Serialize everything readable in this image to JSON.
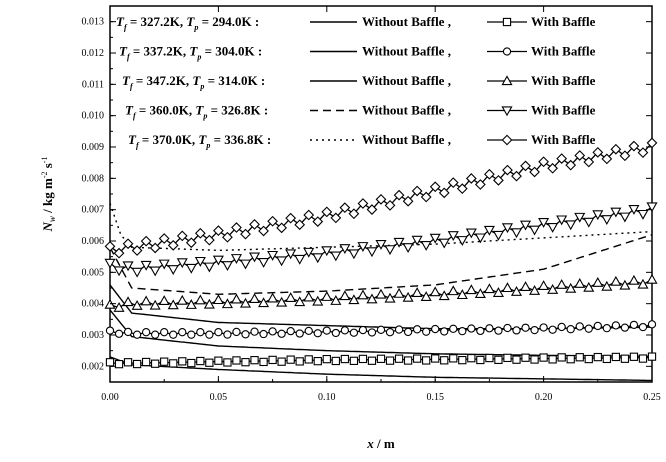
{
  "chart_data": {
    "type": "line",
    "title": "",
    "xlabel": "x / m",
    "ylabel": "N_w / kg m^-2 s^-1",
    "xlim": [
      0.0,
      0.25
    ],
    "ylim": [
      0.0015,
      0.0135
    ],
    "x_ticks": [
      0.0,
      0.05,
      0.1,
      0.15,
      0.2,
      0.25
    ],
    "x_tick_labels": [
      "0.00",
      "0.05",
      "0.10",
      "0.15",
      "0.20",
      "0.25"
    ],
    "y_ticks": [
      0.002,
      0.003,
      0.004,
      0.005,
      0.006,
      0.007,
      0.008,
      0.009,
      0.01,
      0.011,
      0.012,
      0.013
    ],
    "y_tick_labels": [
      "0.002",
      "0.003",
      "0.004",
      "0.005",
      "0.006",
      "0.007",
      "0.008",
      "0.009",
      "0.010",
      "0.011",
      "0.012",
      "0.013"
    ],
    "grid": false,
    "legend_position": "top-left",
    "legend": [
      {
        "condition": "T_f = 327.2K, T_p = 294.0K :",
        "without_label": "Without Baffle ,",
        "with_label": "With Baffle",
        "line_style": "solid",
        "marker": "square"
      },
      {
        "condition": "T_f = 337.2K, T_p = 304.0K :",
        "without_label": "Without Baffle ,",
        "with_label": "With Baffle",
        "line_style": "solid",
        "marker": "circle"
      },
      {
        "condition": "T_f = 347.2K, T_p = 314.0K :",
        "without_label": "Without Baffle ,",
        "with_label": "With Baffle",
        "line_style": "solid",
        "marker": "triangle-up"
      },
      {
        "condition": "T_f = 360.0K, T_p = 326.8K :",
        "without_label": "Without Baffle ,",
        "with_label": "With Baffle",
        "line_style": "dashed",
        "marker": "triangle-down"
      },
      {
        "condition": "T_f = 370.0K, T_p = 336.8K :",
        "without_label": "Without Baffle ,",
        "with_label": "With Baffle",
        "line_style": "dotted",
        "marker": "diamond"
      }
    ],
    "series": [
      {
        "group": 0,
        "kind": "without",
        "style": "solid",
        "x": [
          0.0,
          0.01,
          0.05,
          0.1,
          0.15,
          0.2,
          0.25
        ],
        "y": [
          0.0023,
          0.00205,
          0.0019,
          0.00175,
          0.00165,
          0.0016,
          0.00155
        ]
      },
      {
        "group": 0,
        "kind": "with",
        "marker": "square",
        "x": [
          0.0,
          0.01,
          0.05,
          0.1,
          0.15,
          0.2,
          0.25
        ],
        "y": [
          0.0021,
          0.0021,
          0.00215,
          0.0022,
          0.00222,
          0.00225,
          0.00228
        ]
      },
      {
        "group": 1,
        "kind": "without",
        "style": "solid",
        "x": [
          0.0,
          0.01,
          0.05,
          0.1,
          0.15,
          0.2,
          0.25
        ],
        "y": [
          0.0038,
          0.00295,
          0.00265,
          0.0025,
          0.0024,
          0.00235,
          0.00232
        ]
      },
      {
        "group": 1,
        "kind": "with",
        "marker": "circle",
        "x": [
          0.0,
          0.01,
          0.05,
          0.1,
          0.15,
          0.2,
          0.25
        ],
        "y": [
          0.0031,
          0.00305,
          0.00305,
          0.0031,
          0.00315,
          0.0032,
          0.0033
        ]
      },
      {
        "group": 2,
        "kind": "without",
        "style": "solid",
        "x": [
          0.0,
          0.01,
          0.05,
          0.1,
          0.15,
          0.2,
          0.25
        ],
        "y": [
          0.0046,
          0.0037,
          0.0034,
          0.0033,
          0.0032,
          0.0032,
          0.00325
        ]
      },
      {
        "group": 2,
        "kind": "with",
        "marker": "triangle-up",
        "x": [
          0.0,
          0.01,
          0.05,
          0.1,
          0.15,
          0.2,
          0.25
        ],
        "y": [
          0.0039,
          0.004,
          0.00405,
          0.00415,
          0.0043,
          0.0045,
          0.0047
        ]
      },
      {
        "group": 3,
        "kind": "without",
        "style": "dashed",
        "x": [
          0.0,
          0.01,
          0.05,
          0.1,
          0.15,
          0.2,
          0.25
        ],
        "y": [
          0.0058,
          0.0045,
          0.0043,
          0.0044,
          0.0046,
          0.0051,
          0.0062
        ]
      },
      {
        "group": 3,
        "kind": "with",
        "marker": "triangle-down",
        "x": [
          0.0,
          0.01,
          0.05,
          0.1,
          0.15,
          0.2,
          0.25
        ],
        "y": [
          0.0052,
          0.0051,
          0.0053,
          0.0056,
          0.006,
          0.0065,
          0.007
        ]
      },
      {
        "group": 4,
        "kind": "without",
        "style": "dotted",
        "x": [
          0.0,
          0.005,
          0.01,
          0.05,
          0.1,
          0.15,
          0.2,
          0.25
        ],
        "y": [
          0.0072,
          0.0062,
          0.0058,
          0.0057,
          0.0058,
          0.0059,
          0.0061,
          0.0063
        ]
      },
      {
        "group": 4,
        "kind": "with",
        "marker": "diamond",
        "x": [
          0.0,
          0.01,
          0.05,
          0.1,
          0.15,
          0.2,
          0.25
        ],
        "y": [
          0.0057,
          0.0058,
          0.0062,
          0.0068,
          0.0076,
          0.0084,
          0.009
        ]
      }
    ]
  }
}
